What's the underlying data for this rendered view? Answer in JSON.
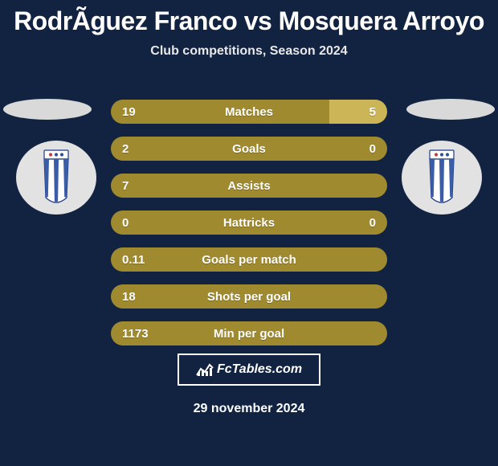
{
  "title": "RodrÃ­guez Franco vs Mosquera Arroyo",
  "subtitle": "Club competitions, Season 2024",
  "date": "29 november 2024",
  "brand": "FcTables.com",
  "colors": {
    "background": "#112341",
    "bar_base": "#a08a2f",
    "bar_highlight": "#cbb556",
    "text": "#ffffff",
    "ellipse": "#d9d9d9",
    "badge_bg": "#e2e2e2"
  },
  "bars": [
    {
      "label": "Matches",
      "left": "19",
      "right": "5",
      "right_fill_pct": 21
    },
    {
      "label": "Goals",
      "left": "2",
      "right": "0",
      "right_fill_pct": 0
    },
    {
      "label": "Assists",
      "left": "7",
      "right": "",
      "right_fill_pct": 0
    },
    {
      "label": "Hattricks",
      "left": "0",
      "right": "0",
      "right_fill_pct": 0
    },
    {
      "label": "Goals per match",
      "left": "0.11",
      "right": "",
      "right_fill_pct": 0
    },
    {
      "label": "Shots per goal",
      "left": "18",
      "right": "",
      "right_fill_pct": 0
    },
    {
      "label": "Min per goal",
      "left": "1173",
      "right": "",
      "right_fill_pct": 0
    }
  ],
  "badge": {
    "stripe_colors": [
      "#3b5da8",
      "#ffffff",
      "#3b5da8",
      "#ffffff",
      "#3b5da8"
    ],
    "top_box_color": "#ffffff",
    "top_dots": [
      "#c93a3a",
      "#2a4fa0",
      "#2a4fa0"
    ]
  }
}
